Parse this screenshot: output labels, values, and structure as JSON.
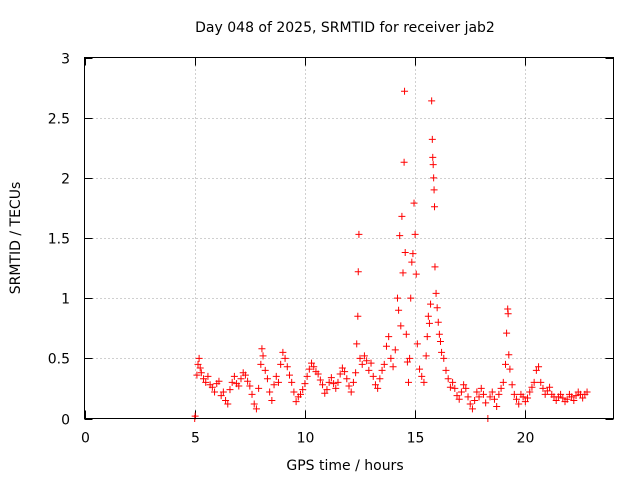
{
  "chart_data": {
    "type": "scatter",
    "title": "Day 048 of 2025, SRMTID for receiver jab2",
    "xlabel": "GPS time / hours",
    "ylabel": "SRMTID / TECUs",
    "xlim": [
      0,
      24
    ],
    "ylim": [
      0,
      3
    ],
    "xticks": [
      0,
      5,
      10,
      15,
      20
    ],
    "yticks": [
      0,
      0.5,
      1,
      1.5,
      2,
      2.5,
      3
    ],
    "xtick_labels": [
      "0",
      "5",
      "10",
      "15",
      "20"
    ],
    "ytick_labels": [
      "0",
      "0.5",
      "1",
      "1.5",
      "2",
      "2.5",
      "3"
    ],
    "grid": true,
    "marker": "+",
    "series_color": "#ff0000",
    "series": [
      {
        "name": "SRMTID",
        "points": [
          [
            5.0,
            0.0
          ],
          [
            5.02,
            0.02
          ],
          [
            5.1,
            0.36
          ],
          [
            5.15,
            0.45
          ],
          [
            5.2,
            0.5
          ],
          [
            5.25,
            0.42
          ],
          [
            5.3,
            0.38
          ],
          [
            5.4,
            0.33
          ],
          [
            5.5,
            0.3
          ],
          [
            5.6,
            0.35
          ],
          [
            5.7,
            0.28
          ],
          [
            5.8,
            0.26
          ],
          [
            5.9,
            0.22
          ],
          [
            6.0,
            0.29
          ],
          [
            6.1,
            0.31
          ],
          [
            6.2,
            0.19
          ],
          [
            6.3,
            0.22
          ],
          [
            6.4,
            0.15
          ],
          [
            6.5,
            0.12
          ],
          [
            6.6,
            0.24
          ],
          [
            6.7,
            0.3
          ],
          [
            6.8,
            0.35
          ],
          [
            6.9,
            0.29
          ],
          [
            7.0,
            0.27
          ],
          [
            7.1,
            0.33
          ],
          [
            7.2,
            0.38
          ],
          [
            7.3,
            0.36
          ],
          [
            7.4,
            0.31
          ],
          [
            7.5,
            0.27
          ],
          [
            7.6,
            0.2
          ],
          [
            7.7,
            0.12
          ],
          [
            7.8,
            0.08
          ],
          [
            7.9,
            0.25
          ],
          [
            8.0,
            0.45
          ],
          [
            8.05,
            0.58
          ],
          [
            8.1,
            0.52
          ],
          [
            8.2,
            0.4
          ],
          [
            8.3,
            0.33
          ],
          [
            8.4,
            0.22
          ],
          [
            8.5,
            0.15
          ],
          [
            8.6,
            0.28
          ],
          [
            8.7,
            0.35
          ],
          [
            8.8,
            0.3
          ],
          [
            8.9,
            0.45
          ],
          [
            9.0,
            0.55
          ],
          [
            9.1,
            0.5
          ],
          [
            9.2,
            0.43
          ],
          [
            9.3,
            0.36
          ],
          [
            9.4,
            0.3
          ],
          [
            9.5,
            0.22
          ],
          [
            9.6,
            0.14
          ],
          [
            9.7,
            0.18
          ],
          [
            9.8,
            0.2
          ],
          [
            9.9,
            0.24
          ],
          [
            10.0,
            0.29
          ],
          [
            10.1,
            0.35
          ],
          [
            10.2,
            0.41
          ],
          [
            10.3,
            0.46
          ],
          [
            10.4,
            0.43
          ],
          [
            10.5,
            0.39
          ],
          [
            10.6,
            0.37
          ],
          [
            10.7,
            0.32
          ],
          [
            10.8,
            0.28
          ],
          [
            10.9,
            0.21
          ],
          [
            11.0,
            0.24
          ],
          [
            11.1,
            0.3
          ],
          [
            11.2,
            0.34
          ],
          [
            11.3,
            0.29
          ],
          [
            11.4,
            0.25
          ],
          [
            11.5,
            0.3
          ],
          [
            11.6,
            0.37
          ],
          [
            11.7,
            0.42
          ],
          [
            11.8,
            0.39
          ],
          [
            11.9,
            0.33
          ],
          [
            12.0,
            0.27
          ],
          [
            12.1,
            0.22
          ],
          [
            12.2,
            0.3
          ],
          [
            12.3,
            0.38
          ],
          [
            12.35,
            0.62
          ],
          [
            12.4,
            0.85
          ],
          [
            12.42,
            1.22
          ],
          [
            12.45,
            1.53
          ],
          [
            12.5,
            0.5
          ],
          [
            12.6,
            0.45
          ],
          [
            12.7,
            0.52
          ],
          [
            12.8,
            0.48
          ],
          [
            12.9,
            0.4
          ],
          [
            13.0,
            0.46
          ],
          [
            13.1,
            0.35
          ],
          [
            13.2,
            0.28
          ],
          [
            13.3,
            0.25
          ],
          [
            13.4,
            0.33
          ],
          [
            13.5,
            0.4
          ],
          [
            13.6,
            0.45
          ],
          [
            13.7,
            0.6
          ],
          [
            13.8,
            0.68
          ],
          [
            13.9,
            0.5
          ],
          [
            14.0,
            0.43
          ],
          [
            14.1,
            0.57
          ],
          [
            14.2,
            1.0
          ],
          [
            14.25,
            0.9
          ],
          [
            14.3,
            1.52
          ],
          [
            14.35,
            0.77
          ],
          [
            14.4,
            1.68
          ],
          [
            14.45,
            1.21
          ],
          [
            14.5,
            2.13
          ],
          [
            14.52,
            2.72
          ],
          [
            14.55,
            1.38
          ],
          [
            14.6,
            0.7
          ],
          [
            14.65,
            0.47
          ],
          [
            14.7,
            0.3
          ],
          [
            14.75,
            0.5
          ],
          [
            14.8,
            1.0
          ],
          [
            14.85,
            1.3
          ],
          [
            14.9,
            1.37
          ],
          [
            14.95,
            1.79
          ],
          [
            15.0,
            1.53
          ],
          [
            15.05,
            1.2
          ],
          [
            15.1,
            0.62
          ],
          [
            15.2,
            0.41
          ],
          [
            15.3,
            0.35
          ],
          [
            15.4,
            0.3
          ],
          [
            15.5,
            0.52
          ],
          [
            15.55,
            0.68
          ],
          [
            15.6,
            0.85
          ],
          [
            15.65,
            0.79
          ],
          [
            15.7,
            0.95
          ],
          [
            15.75,
            2.64
          ],
          [
            15.78,
            2.32
          ],
          [
            15.8,
            2.17
          ],
          [
            15.82,
            2.11
          ],
          [
            15.84,
            2.0
          ],
          [
            15.86,
            1.9
          ],
          [
            15.88,
            1.76
          ],
          [
            15.9,
            1.26
          ],
          [
            15.95,
            1.04
          ],
          [
            16.0,
            0.92
          ],
          [
            16.05,
            0.8
          ],
          [
            16.1,
            0.7
          ],
          [
            16.15,
            0.64
          ],
          [
            16.2,
            0.55
          ],
          [
            16.3,
            0.5
          ],
          [
            16.4,
            0.4
          ],
          [
            16.5,
            0.33
          ],
          [
            16.6,
            0.26
          ],
          [
            16.7,
            0.3
          ],
          [
            16.8,
            0.25
          ],
          [
            16.9,
            0.19
          ],
          [
            17.0,
            0.16
          ],
          [
            17.1,
            0.22
          ],
          [
            17.2,
            0.28
          ],
          [
            17.3,
            0.25
          ],
          [
            17.4,
            0.18
          ],
          [
            17.5,
            0.12
          ],
          [
            17.6,
            0.08
          ],
          [
            17.7,
            0.15
          ],
          [
            17.8,
            0.22
          ],
          [
            17.9,
            0.18
          ],
          [
            18.0,
            0.25
          ],
          [
            18.1,
            0.2
          ],
          [
            18.2,
            0.13
          ],
          [
            18.3,
            0.0
          ],
          [
            18.4,
            0.18
          ],
          [
            18.5,
            0.22
          ],
          [
            18.6,
            0.16
          ],
          [
            18.7,
            0.1
          ],
          [
            18.8,
            0.2
          ],
          [
            18.9,
            0.25
          ],
          [
            19.0,
            0.3
          ],
          [
            19.1,
            0.45
          ],
          [
            19.15,
            0.71
          ],
          [
            19.2,
            0.91
          ],
          [
            19.22,
            0.87
          ],
          [
            19.25,
            0.53
          ],
          [
            19.3,
            0.41
          ],
          [
            19.4,
            0.28
          ],
          [
            19.5,
            0.2
          ],
          [
            19.6,
            0.16
          ],
          [
            19.7,
            0.12
          ],
          [
            19.8,
            0.2
          ],
          [
            19.9,
            0.18
          ],
          [
            20.0,
            0.14
          ],
          [
            20.1,
            0.17
          ],
          [
            20.2,
            0.22
          ],
          [
            20.3,
            0.26
          ],
          [
            20.4,
            0.3
          ],
          [
            20.5,
            0.4
          ],
          [
            20.6,
            0.43
          ],
          [
            20.7,
            0.3
          ],
          [
            20.8,
            0.25
          ],
          [
            20.9,
            0.2
          ],
          [
            21.0,
            0.23
          ],
          [
            21.1,
            0.26
          ],
          [
            21.2,
            0.2
          ],
          [
            21.3,
            0.18
          ],
          [
            21.4,
            0.15
          ],
          [
            21.5,
            0.18
          ],
          [
            21.6,
            0.2
          ],
          [
            21.7,
            0.17
          ],
          [
            21.8,
            0.14
          ],
          [
            21.9,
            0.16
          ],
          [
            22.0,
            0.2
          ],
          [
            22.1,
            0.18
          ],
          [
            22.2,
            0.15
          ],
          [
            22.3,
            0.19
          ],
          [
            22.4,
            0.22
          ],
          [
            22.5,
            0.2
          ],
          [
            22.6,
            0.17
          ],
          [
            22.7,
            0.2
          ],
          [
            22.8,
            0.22
          ]
        ]
      }
    ]
  }
}
